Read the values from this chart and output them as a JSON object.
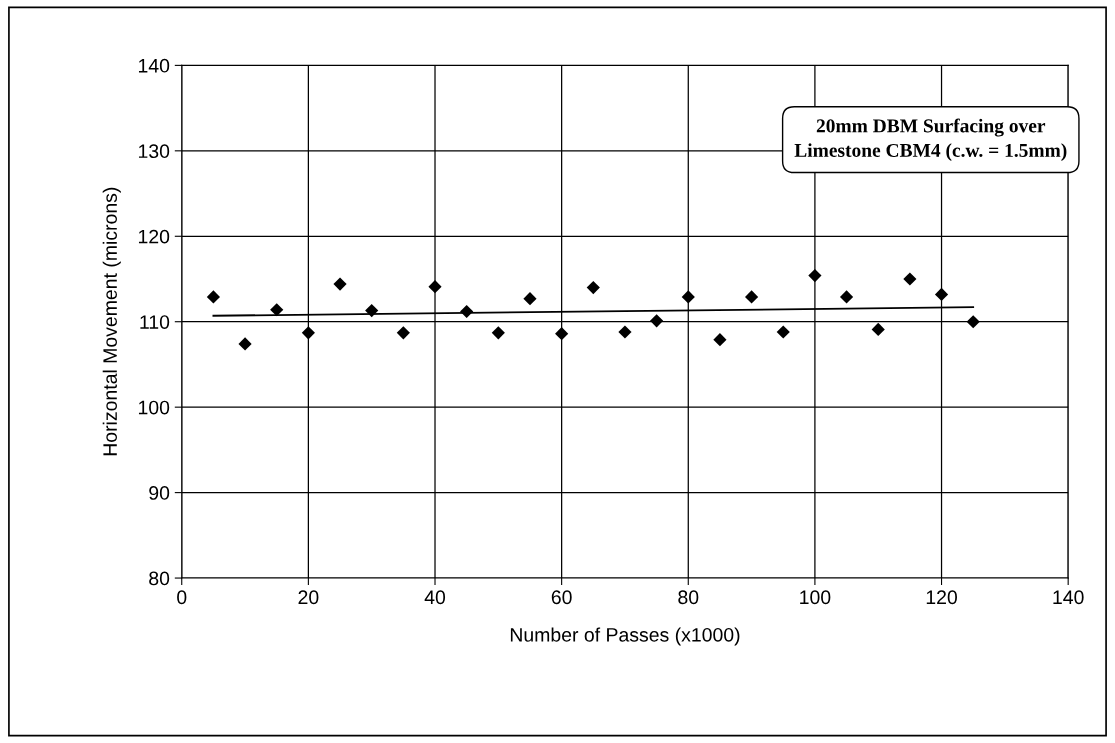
{
  "chart_data": {
    "type": "scatter",
    "xlabel": "Number of Passes (x1000)",
    "ylabel": "Horizontal Movement (microns)",
    "annotations": [
      "20mm DBM Surfacing over\nLimestone CBM4 (c.w. = 1.5mm)"
    ],
    "x": [
      5,
      10,
      15,
      20,
      25,
      30,
      35,
      40,
      45,
      50,
      55,
      60,
      65,
      70,
      75,
      80,
      85,
      90,
      95,
      100,
      105,
      110,
      115,
      120,
      125
    ],
    "series": [
      {
        "color": "#000000",
        "marker": "diamond",
        "values": [
          112.9,
          107.4,
          111.4,
          108.7,
          114.4,
          111.3,
          108.7,
          114.1,
          111.2,
          108.7,
          112.7,
          108.6,
          114.0,
          108.8,
          110.1,
          112.9,
          107.9,
          112.9,
          108.8,
          115.4,
          112.9,
          109.1,
          115.0,
          113.2,
          110.0
        ]
      },
      {
        "type": "line",
        "color": "#000000",
        "marker": "none",
        "line_style": "solid",
        "x": [
          5,
          125
        ],
        "values": [
          110.7,
          111.7
        ]
      }
    ],
    "xlim": [
      0,
      140
    ],
    "xticks": [
      0,
      20,
      40,
      60,
      80,
      100,
      120,
      140
    ],
    "ylim": [
      80,
      140
    ],
    "yticks": [
      80,
      90,
      100,
      110,
      120,
      130,
      140
    ],
    "grid": true,
    "legend": false
  }
}
